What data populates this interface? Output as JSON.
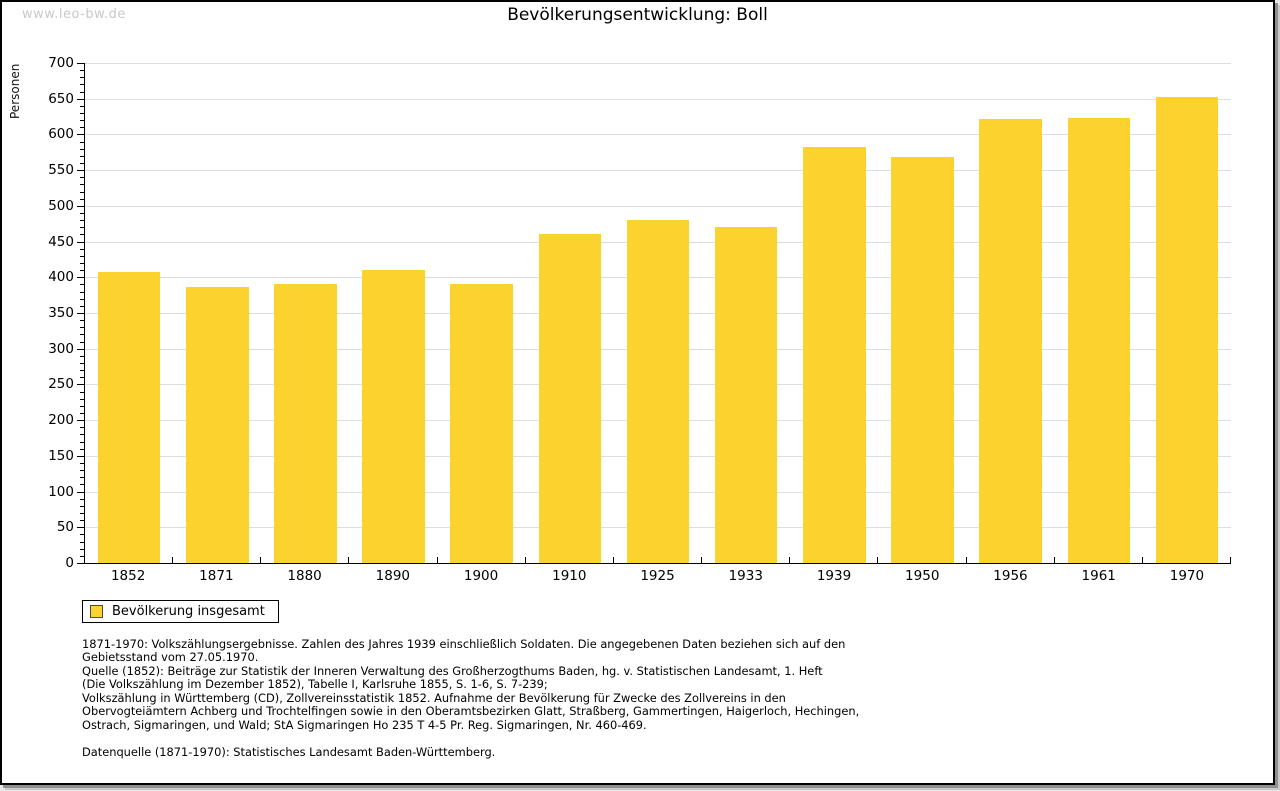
{
  "watermark": "www.leo-bw.de",
  "title": "Bevölkerungsentwicklung: Boll",
  "chart_data": {
    "type": "bar",
    "title": "Bevölkerungsentwicklung: Boll",
    "xlabel": "",
    "ylabel": "Personen",
    "ylim": [
      0,
      700
    ],
    "y_major_step": 50,
    "y_minor_step": 10,
    "y_ticks": [
      0,
      50,
      100,
      150,
      200,
      250,
      300,
      350,
      400,
      450,
      500,
      550,
      600,
      650,
      700
    ],
    "grid": true,
    "legend_position": "bottom-left",
    "categories": [
      "1852",
      "1871",
      "1880",
      "1890",
      "1900",
      "1910",
      "1925",
      "1933",
      "1939",
      "1950",
      "1956",
      "1961",
      "1970"
    ],
    "series": [
      {
        "name": "Bevölkerung insgesamt",
        "color": "#fcd32e",
        "values": [
          407,
          386,
          391,
          410,
          390,
          460,
          480,
          471,
          583,
          569,
          622,
          623,
          653
        ]
      }
    ]
  },
  "legend": {
    "label": "Bevölkerung insgesamt"
  },
  "footnotes": {
    "lines": [
      "1871-1970: Volkszählungsergebnisse. Zahlen des Jahres 1939 einschließlich Soldaten. Die angegebenen Daten beziehen sich auf den",
      "Gebietsstand vom 27.05.1970.",
      "Quelle (1852): Beiträge zur Statistik der Inneren Verwaltung des Großherzogthums Baden, hg. v. Statistischen Landesamt, 1. Heft",
      "(Die Volkszählung im Dezember 1852), Tabelle I, Karlsruhe 1855, S. 1-6, S. 7-239;",
      "Volkszählung in Württemberg (CD), Zollvereinsstatistik 1852. Aufnahme der Bevölkerung für Zwecke des Zollvereins in den",
      "Obervogteiämtern Achberg und Trochtelfingen sowie in den Oberamtsbezirken Glatt, Straßberg, Gammertingen, Haigerloch, Hechingen,",
      "Ostrach, Sigmaringen, und Wald; StA Sigmaringen Ho 235 T 4-5 Pr. Reg. Sigmaringen, Nr. 460-469."
    ],
    "datasource": "Datenquelle (1871-1970): Statistisches Landesamt Baden-Württemberg."
  }
}
